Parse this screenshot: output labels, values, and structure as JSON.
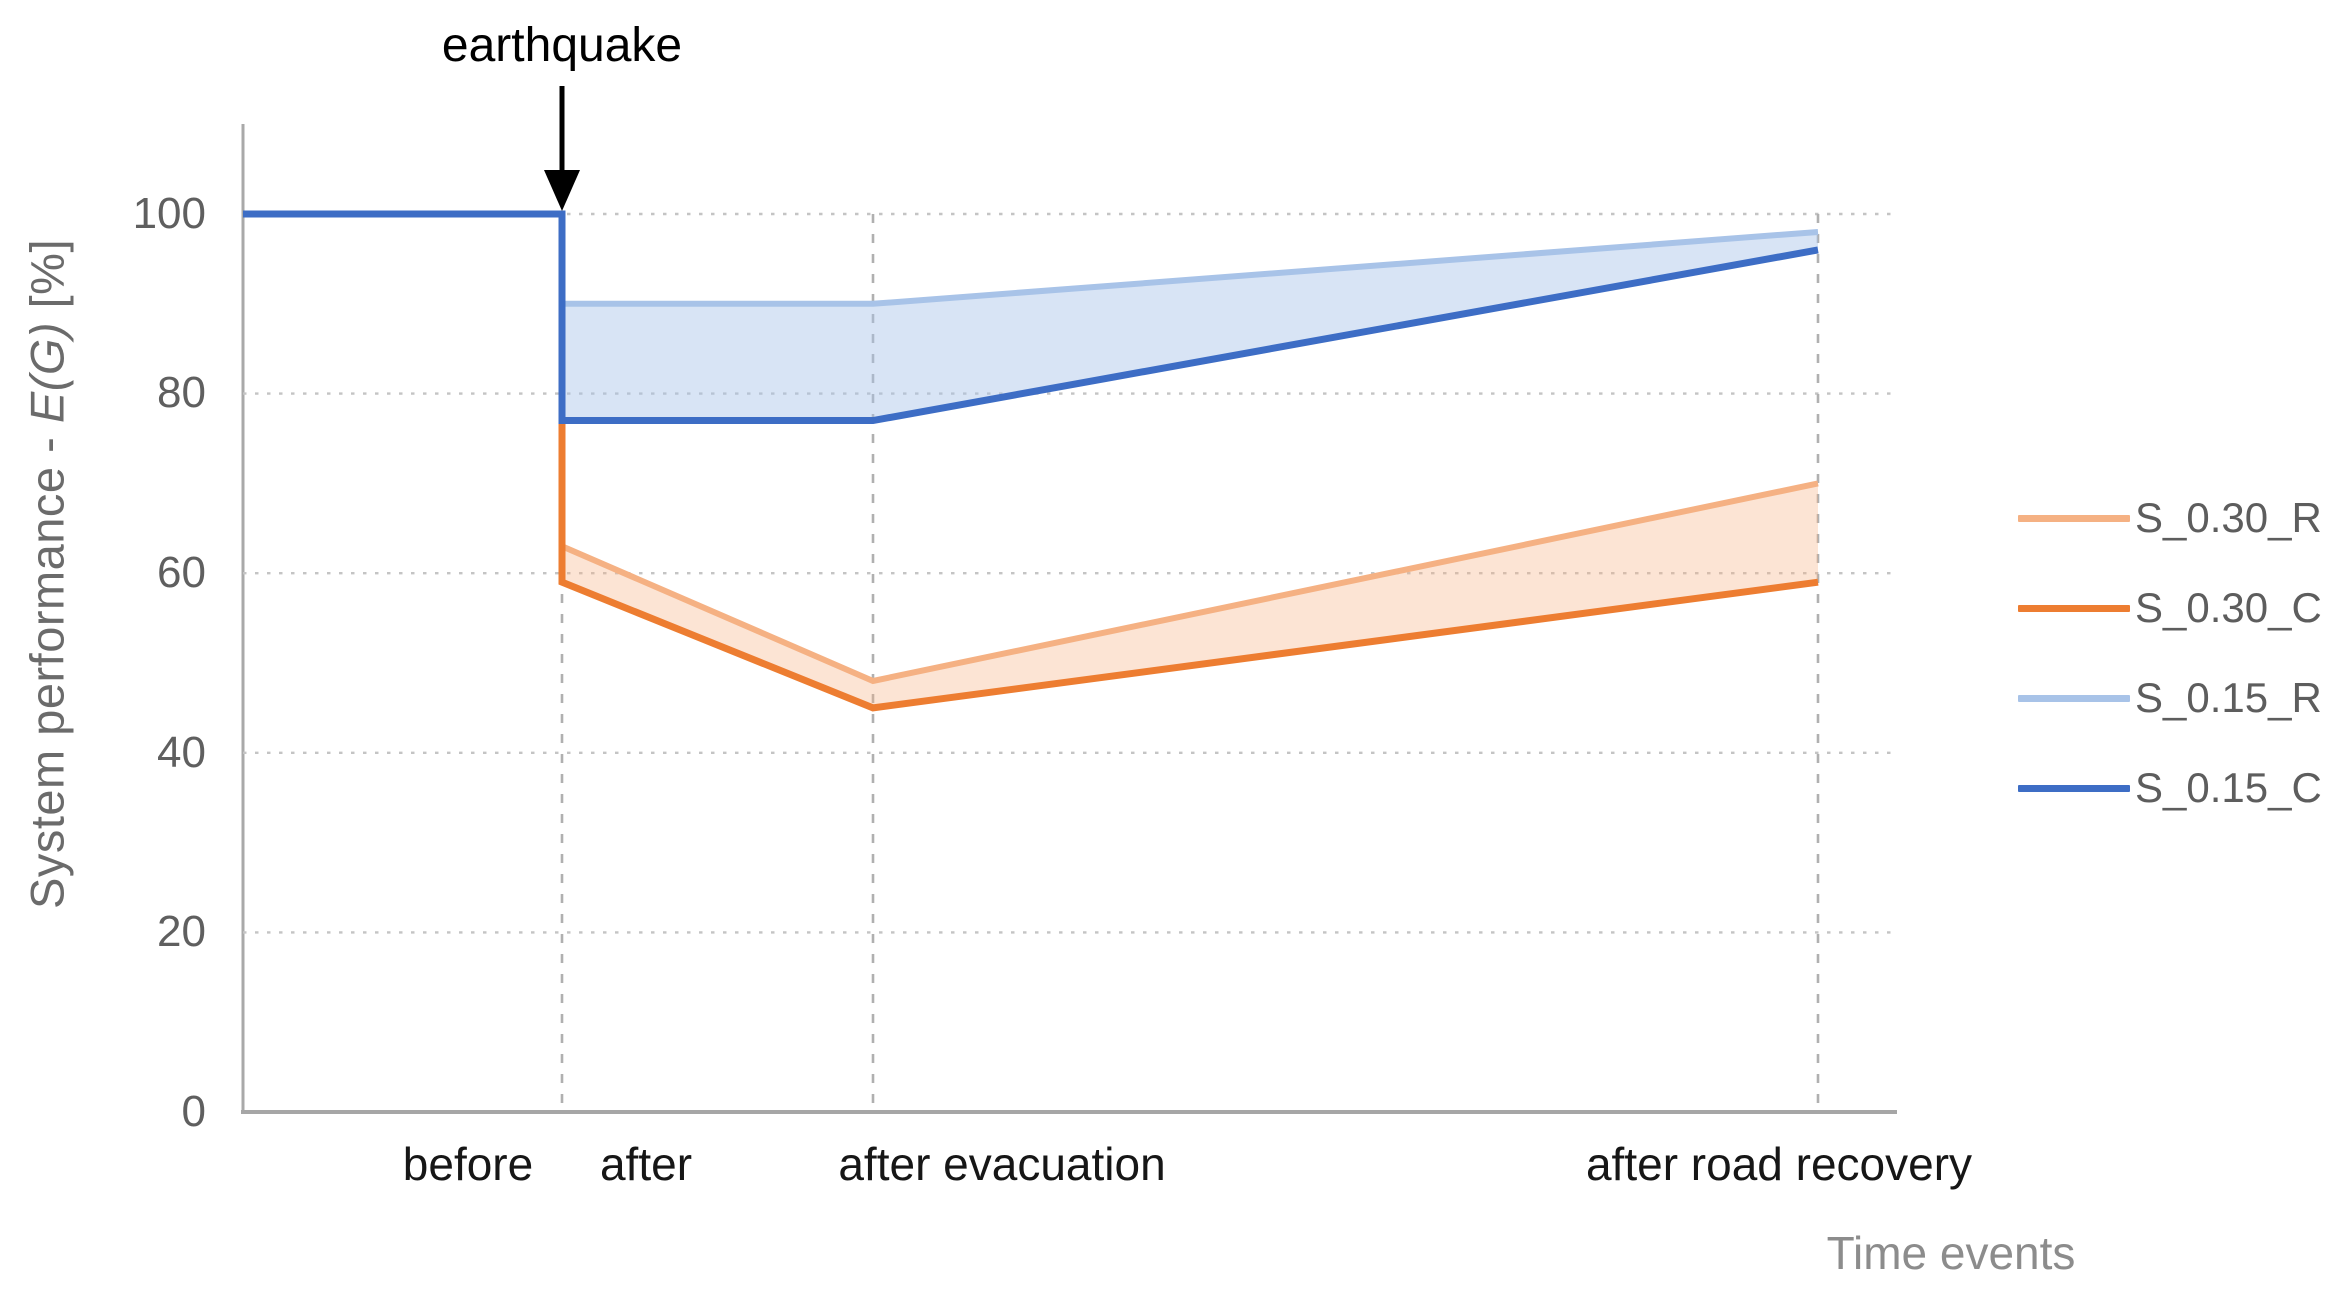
{
  "annotation": {
    "label": "earthquake"
  },
  "axes": {
    "y_title_prefix": "System performance - ",
    "y_title_italic": "E(G)",
    "y_title_suffix": " [%]",
    "x_title": "Time events"
  },
  "chart_data": {
    "type": "line",
    "title": "",
    "xlabel": "Time events",
    "ylabel": "System performance - E(G) [%]",
    "x_categories": [
      "before",
      "after",
      "after evacuation",
      "after road recovery"
    ],
    "yticks": [
      0,
      20,
      40,
      60,
      80,
      100
    ],
    "ylim": [
      0,
      110
    ],
    "grid": true,
    "legend_position": "right",
    "annotations": [
      {
        "text": "earthquake",
        "at_category": "after",
        "y": 100,
        "style": "arrow-down"
      }
    ],
    "series": [
      {
        "name": "S_0.30_R",
        "color": "#F5B183",
        "values": [
          100,
          63,
          48,
          70
        ]
      },
      {
        "name": "S_0.30_C",
        "color": "#ED7D31",
        "values": [
          100,
          59,
          45,
          59
        ]
      },
      {
        "name": "S_0.15_R",
        "color": "#A8C3E8",
        "values": [
          100,
          90,
          90,
          98
        ]
      },
      {
        "name": "S_0.15_C",
        "color": "#3D6DC5",
        "values": [
          100,
          77,
          77,
          96
        ]
      }
    ],
    "bands": [
      {
        "upper": "S_0.30_R",
        "lower": "S_0.30_C",
        "fill": "#F5B183",
        "opacity": 0.35
      },
      {
        "upper": "S_0.15_R",
        "lower": "S_0.15_C",
        "fill": "#A8C3E8",
        "opacity": 0.45
      }
    ]
  }
}
